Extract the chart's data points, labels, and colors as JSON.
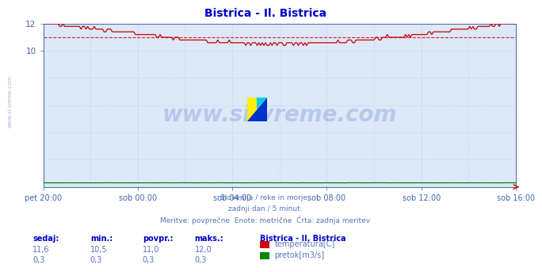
{
  "title": "Bistrica - Il. Bistrica",
  "title_color": "#0000cc",
  "bg_color": "#ffffff",
  "plot_bg_color": "#dde8f8",
  "grid_color": "#c8d4ee",
  "x_labels": [
    "pet 20:00",
    "sob 00:00",
    "sob 04:00",
    "sob 08:00",
    "sob 12:00",
    "sob 16:00"
  ],
  "y_min": 0,
  "y_max": 12,
  "y_ticks": [
    10,
    12
  ],
  "axis_color": "#4466aa",
  "temp_color": "#cc0000",
  "flow_color": "#008800",
  "watermark_text": "www.si-vreme.com",
  "watermark_color": "#5577cc",
  "watermark_alpha": 0.28,
  "subtitle_lines": [
    "Slovenija / reke in morje.",
    "zadnji dan / 5 minut.",
    "Meritve: povprečne  Enote: metrične  Črta: zadnja meritev"
  ],
  "subtitle_color": "#5577bb",
  "legend_title": "Bistrica - Il. Bistrica",
  "legend_items": [
    {
      "label": "temperatura[C]",
      "color": "#cc0000"
    },
    {
      "label": "pretok[m3/s]",
      "color": "#008800"
    }
  ],
  "stats_headers": [
    "sedaj:",
    "min.:",
    "povpr.:",
    "maks.:"
  ],
  "stats_temp": [
    "11,6",
    "10,5",
    "11,0",
    "12,0"
  ],
  "stats_flow": [
    "0,3",
    "0,3",
    "0,3",
    "0,3"
  ],
  "n_points": 288,
  "temp_avg": 11.0,
  "flow_value": 0.3,
  "left_watermark": "www.si-vreme.com"
}
